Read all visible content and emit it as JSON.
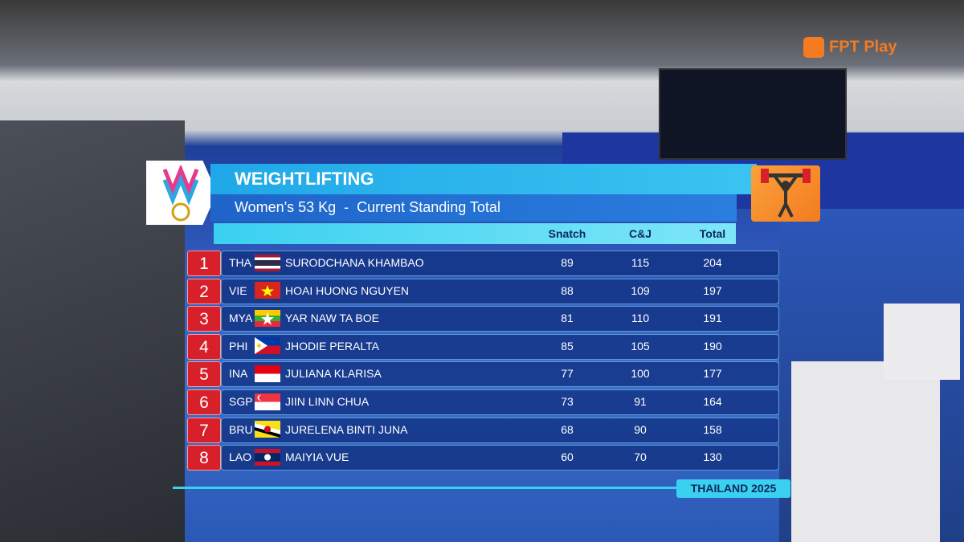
{
  "broadcast": {
    "logo": "FPT Play"
  },
  "board": {
    "title": "WEIGHTLIFTING",
    "subtitle": "Women's 53 Kg  -  Current Standing Total",
    "columns": [
      "Snatch",
      "C&J",
      "Total"
    ],
    "rows": [
      {
        "rank": 1,
        "code": "THA",
        "name": "SURODCHANA KHAMBAO",
        "snatch": 89,
        "cj": 115,
        "total": 204
      },
      {
        "rank": 2,
        "code": "VIE",
        "name": "HOAI HUONG NGUYEN",
        "snatch": 88,
        "cj": 109,
        "total": 197
      },
      {
        "rank": 3,
        "code": "MYA",
        "name": "YAR NAW TA BOE",
        "snatch": 81,
        "cj": 110,
        "total": 191
      },
      {
        "rank": 4,
        "code": "PHI",
        "name": "JHODIE PERALTA",
        "snatch": 85,
        "cj": 105,
        "total": 190
      },
      {
        "rank": 5,
        "code": "INA",
        "name": "JULIANA KLARISA",
        "snatch": 77,
        "cj": 100,
        "total": 177
      },
      {
        "rank": 6,
        "code": "SGP",
        "name": "JIIN LINN CHUA",
        "snatch": 73,
        "cj": 91,
        "total": 164
      },
      {
        "rank": 7,
        "code": "BRU",
        "name": "JURELENA BINTI JUNA",
        "snatch": 68,
        "cj": 90,
        "total": 158
      },
      {
        "rank": 8,
        "code": "LAO",
        "name": "MAIYIA VUE",
        "snatch": 60,
        "cj": 70,
        "total": 130
      }
    ],
    "footer": "THAILAND 2025"
  }
}
